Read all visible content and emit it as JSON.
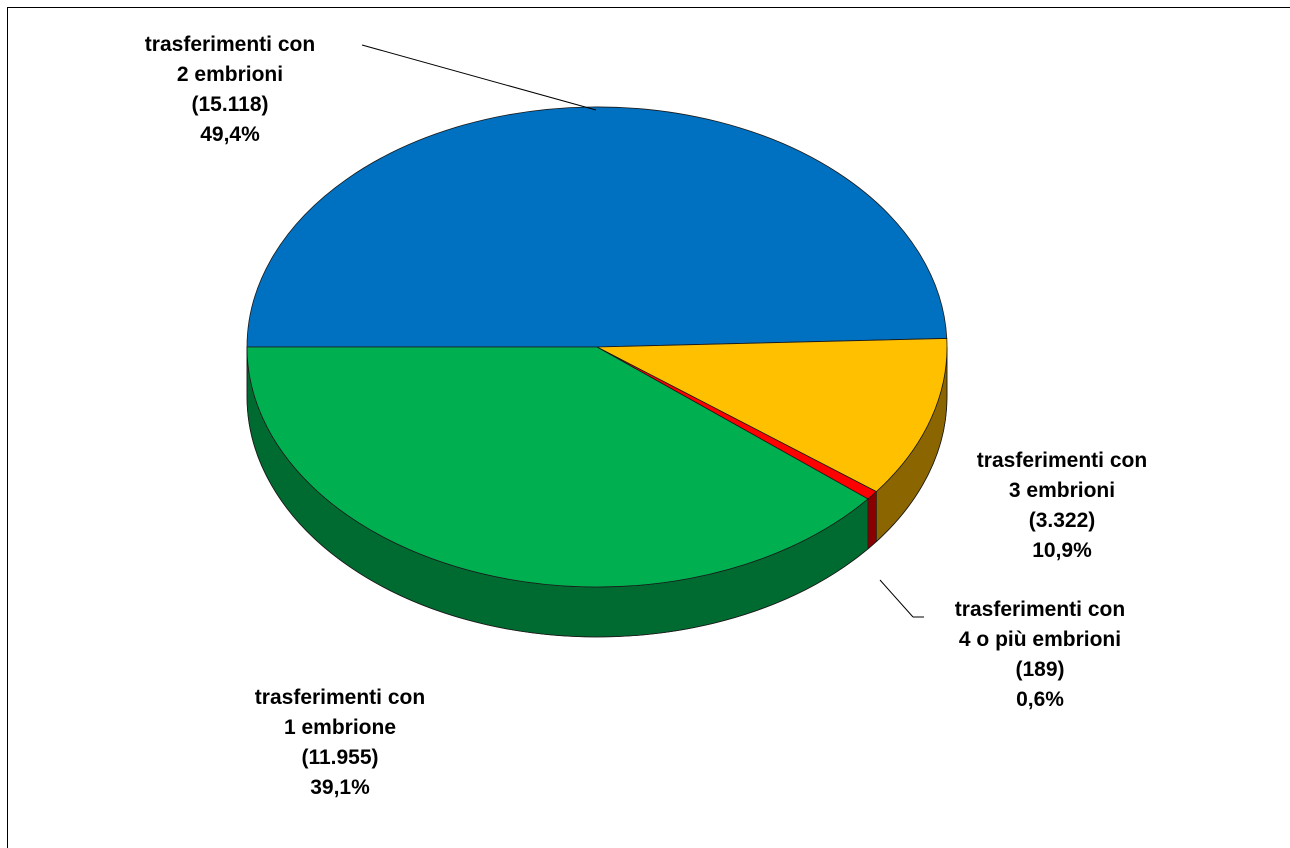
{
  "chart_data": {
    "type": "pie",
    "title": "",
    "slices": [
      {
        "line1": "trasferimenti con",
        "line2": "2 embrioni",
        "count": "(15.118)",
        "percent": "49,4%",
        "value": 15118,
        "color": "#0070c0",
        "side_color": "#00477a"
      },
      {
        "line1": "trasferimenti con",
        "line2": "3 embrioni",
        "count": "(3.322)",
        "percent": "10,9%",
        "value": 3322,
        "color": "#ffc000",
        "side_color": "#8a6500"
      },
      {
        "line1": "trasferimenti con",
        "line2": "4 o più embrioni",
        "count": "(189)",
        "percent": "0,6%",
        "value": 189,
        "color": "#ff0000",
        "side_color": "#8a0000"
      },
      {
        "line1": "trasferimenti con",
        "line2": "1 embrione",
        "count": "(11.955)",
        "percent": "39,1%",
        "value": 11955,
        "color": "#00b050",
        "side_color": "#006b30"
      }
    ]
  }
}
